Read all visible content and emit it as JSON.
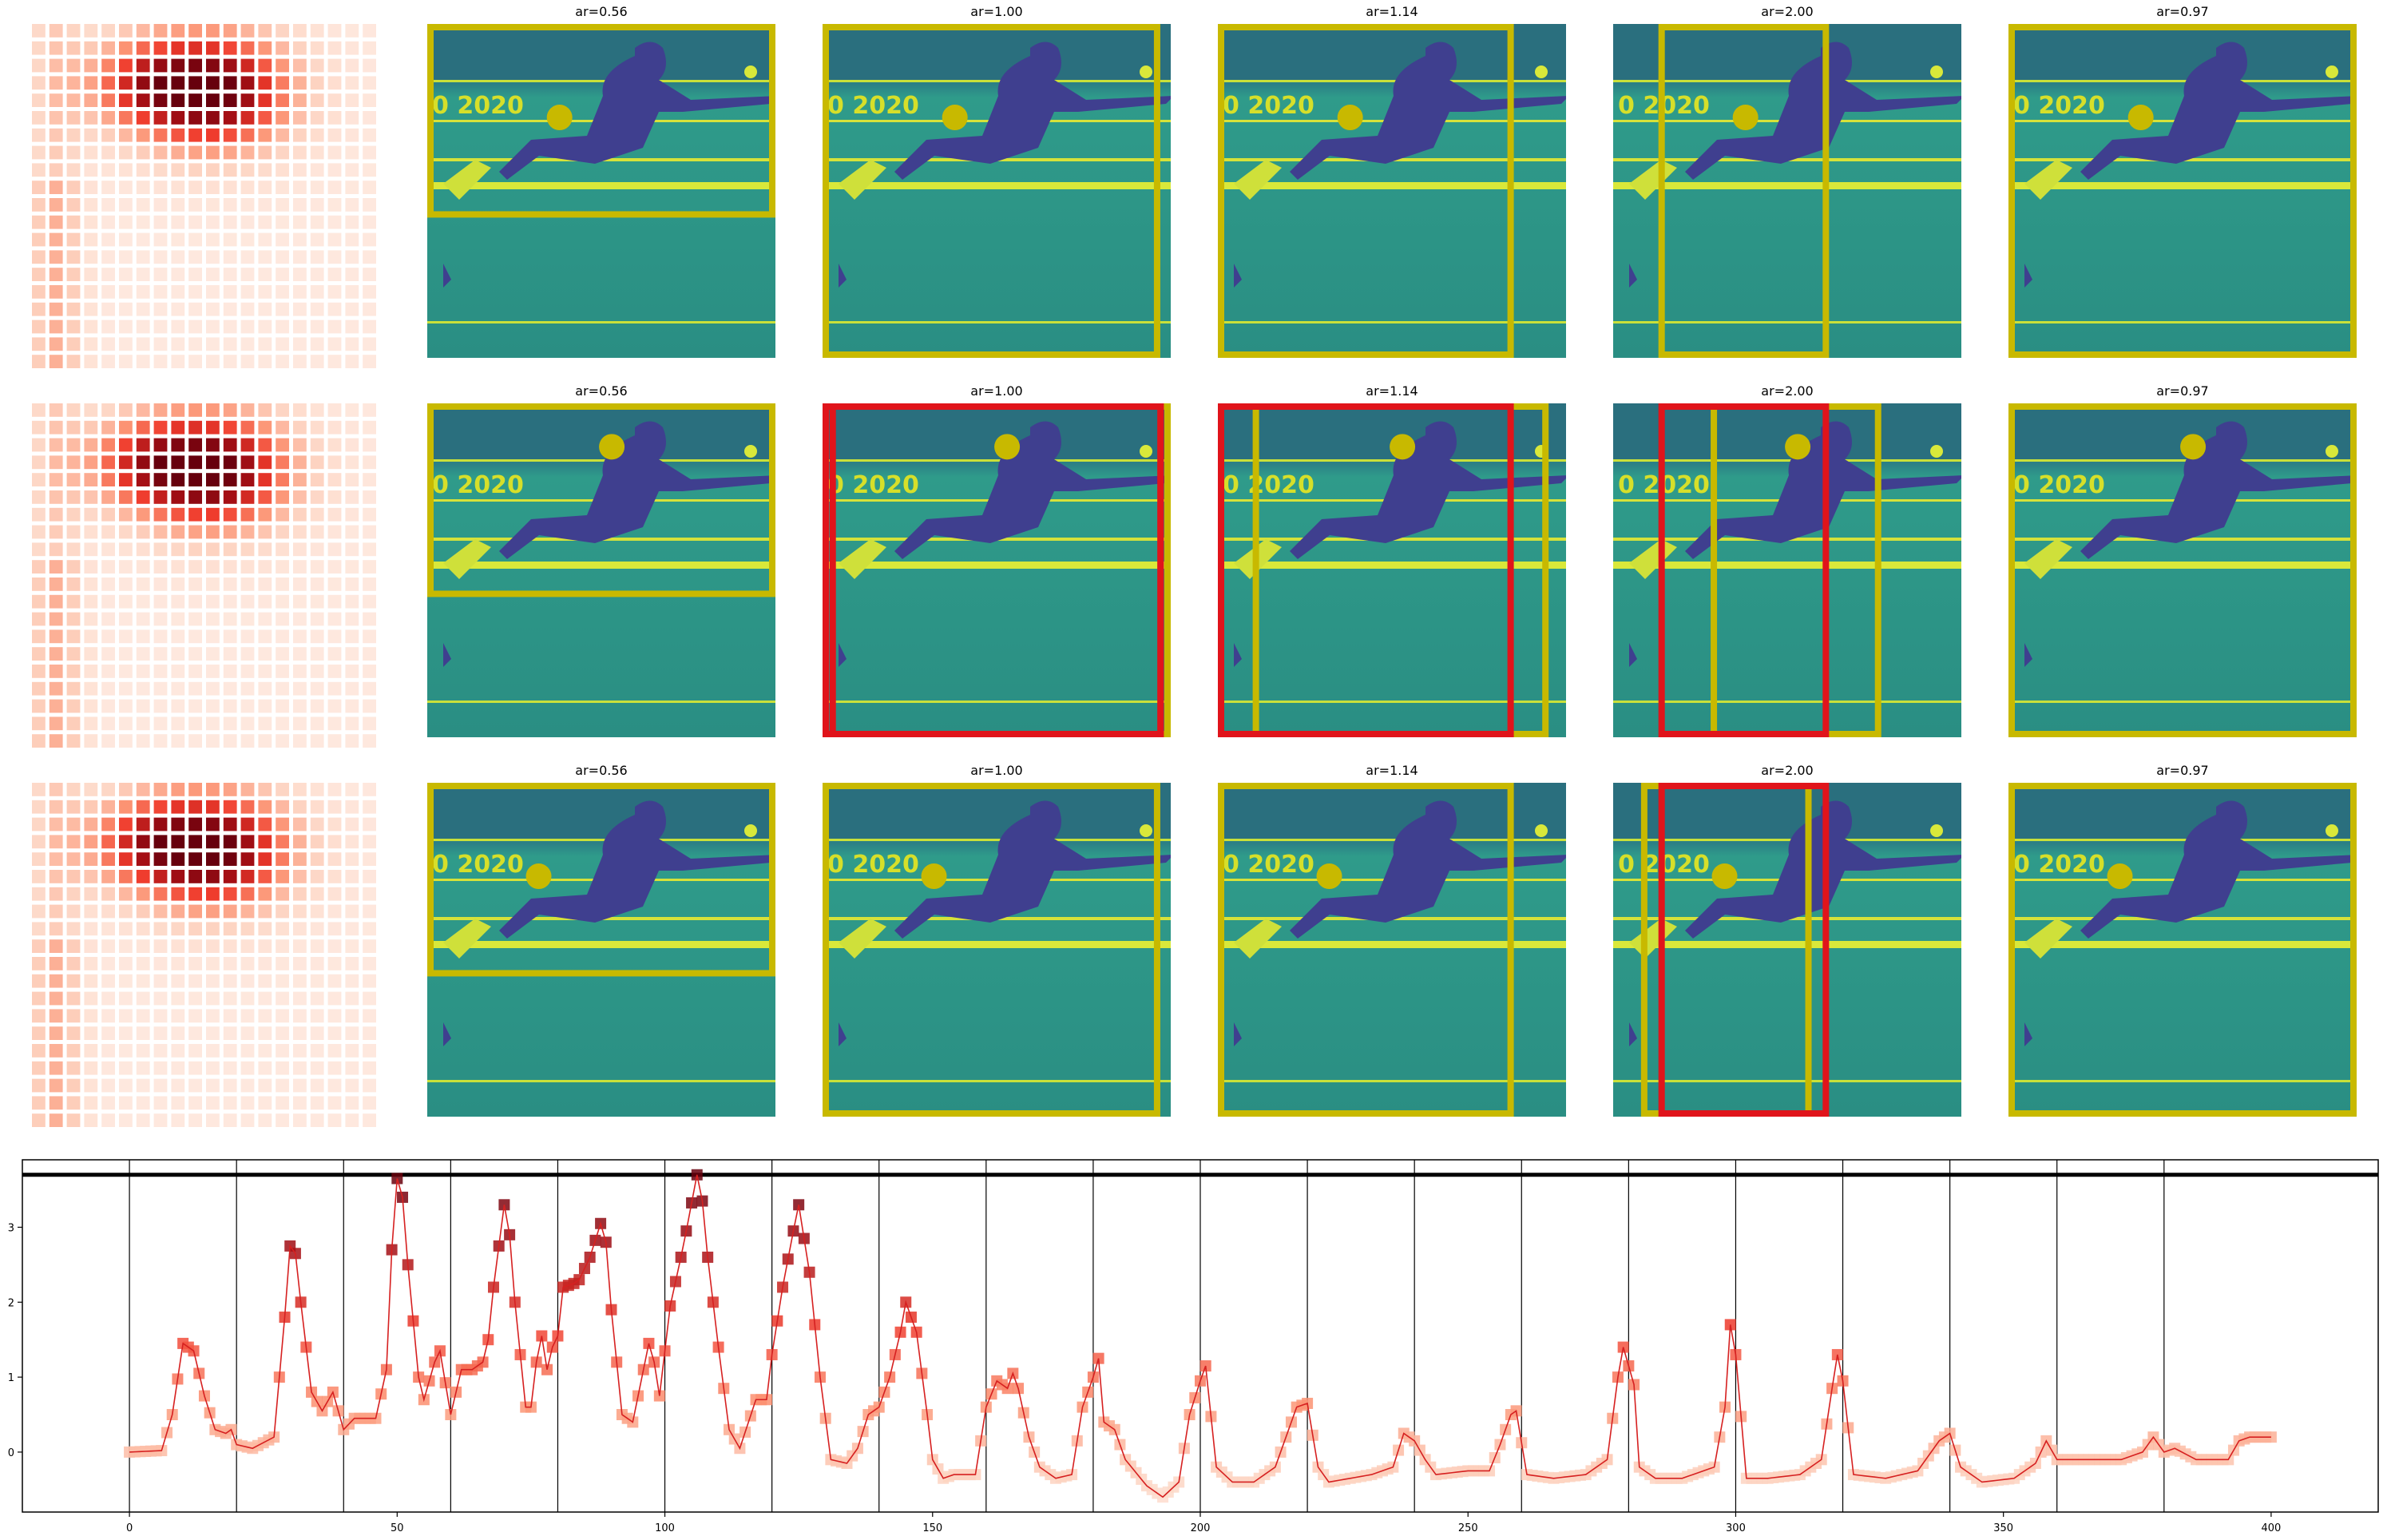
{
  "panel_rows": [
    {
      "titles": [
        "ar=0.56",
        "ar=1.00",
        "ar=1.14",
        "ar=2.00",
        "ar=0.97"
      ]
    },
    {
      "titles": [
        "ar=0.56",
        "ar=1.00",
        "ar=1.14",
        "ar=2.00",
        "ar=0.97"
      ]
    },
    {
      "titles": [
        "ar=0.56",
        "ar=1.00",
        "ar=1.14",
        "ar=2.00",
        "ar=0.97"
      ]
    }
  ],
  "colors": {
    "heat_scale": [
      "#fff5f0",
      "#fdd4c2",
      "#fc9272",
      "#ef3b2c",
      "#a50f15",
      "#67000d"
    ],
    "box_yellow": "#c8b900",
    "box_red": "#e0141b",
    "photo_bg": "#2a8a87",
    "line": "#d62020"
  },
  "chart_data": {
    "type": "line",
    "title": "",
    "xlabel": "",
    "ylabel": "",
    "xlim": [
      -20,
      420
    ],
    "ylim": [
      -0.8,
      3.9
    ],
    "xticks": [
      0,
      50,
      100,
      150,
      200,
      250,
      300,
      350,
      400
    ],
    "yticks": [
      0,
      1,
      2,
      3
    ],
    "threshold": 3.7,
    "vlines": [
      0,
      20,
      40,
      60,
      80,
      100,
      120,
      140,
      160,
      180,
      200,
      220,
      240,
      260,
      280,
      300,
      320,
      340,
      360,
      380
    ],
    "keypoints": [
      [
        0,
        0.0
      ],
      [
        6,
        0.02
      ],
      [
        8,
        0.5
      ],
      [
        10,
        1.45
      ],
      [
        12,
        1.35
      ],
      [
        14,
        0.75
      ],
      [
        16,
        0.3
      ],
      [
        18,
        0.25
      ],
      [
        19,
        0.3
      ],
      [
        20,
        0.1
      ],
      [
        23,
        0.05
      ],
      [
        27,
        0.2
      ],
      [
        29,
        1.8
      ],
      [
        30,
        2.75
      ],
      [
        31,
        2.65
      ],
      [
        32,
        2.0
      ],
      [
        34,
        0.8
      ],
      [
        36,
        0.55
      ],
      [
        38,
        0.8
      ],
      [
        40,
        0.3
      ],
      [
        42,
        0.45
      ],
      [
        46,
        0.45
      ],
      [
        48,
        1.1
      ],
      [
        49,
        2.7
      ],
      [
        50,
        3.65
      ],
      [
        51,
        3.4
      ],
      [
        52,
        2.5
      ],
      [
        54,
        1.0
      ],
      [
        55,
        0.7
      ],
      [
        57,
        1.2
      ],
      [
        58,
        1.35
      ],
      [
        60,
        0.5
      ],
      [
        62,
        1.1
      ],
      [
        64,
        1.1
      ],
      [
        66,
        1.2
      ],
      [
        67,
        1.5
      ],
      [
        68,
        2.2
      ],
      [
        70,
        3.3
      ],
      [
        71,
        2.9
      ],
      [
        72,
        2.0
      ],
      [
        74,
        0.6
      ],
      [
        75,
        0.6
      ],
      [
        76,
        1.2
      ],
      [
        77,
        1.55
      ],
      [
        78,
        1.1
      ],
      [
        79,
        1.4
      ],
      [
        80,
        1.55
      ],
      [
        81,
        2.2
      ],
      [
        83,
        2.25
      ],
      [
        84,
        2.3
      ],
      [
        86,
        2.6
      ],
      [
        88,
        3.05
      ],
      [
        89,
        2.8
      ],
      [
        90,
        1.9
      ],
      [
        92,
        0.5
      ],
      [
        94,
        0.4
      ],
      [
        96,
        1.1
      ],
      [
        97,
        1.45
      ],
      [
        98,
        1.2
      ],
      [
        99,
        0.75
      ],
      [
        101,
        1.95
      ],
      [
        103,
        2.6
      ],
      [
        104,
        2.95
      ],
      [
        106,
        3.7
      ],
      [
        107,
        3.35
      ],
      [
        108,
        2.6
      ],
      [
        110,
        1.4
      ],
      [
        112,
        0.3
      ],
      [
        114,
        0.05
      ],
      [
        117,
        0.7
      ],
      [
        119,
        0.7
      ],
      [
        120,
        1.3
      ],
      [
        122,
        2.2
      ],
      [
        124,
        2.95
      ],
      [
        125,
        3.3
      ],
      [
        127,
        2.4
      ],
      [
        129,
        1.0
      ],
      [
        131,
        -0.1
      ],
      [
        134,
        -0.15
      ],
      [
        136,
        0.05
      ],
      [
        138,
        0.5
      ],
      [
        140,
        0.6
      ],
      [
        142,
        1.0
      ],
      [
        144,
        1.6
      ],
      [
        145,
        2.0
      ],
      [
        147,
        1.6
      ],
      [
        149,
        0.5
      ],
      [
        150,
        -0.1
      ],
      [
        152,
        -0.35
      ],
      [
        154,
        -0.3
      ],
      [
        158,
        -0.3
      ],
      [
        160,
        0.6
      ],
      [
        162,
        0.95
      ],
      [
        164,
        0.85
      ],
      [
        165,
        1.05
      ],
      [
        166,
        0.85
      ],
      [
        168,
        0.2
      ],
      [
        170,
        -0.2
      ],
      [
        173,
        -0.35
      ],
      [
        176,
        -0.3
      ],
      [
        178,
        0.6
      ],
      [
        180,
        1.0
      ],
      [
        181,
        1.25
      ],
      [
        182,
        0.4
      ],
      [
        184,
        0.3
      ],
      [
        186,
        -0.1
      ],
      [
        190,
        -0.45
      ],
      [
        193,
        -0.6
      ],
      [
        196,
        -0.4
      ],
      [
        198,
        0.5
      ],
      [
        200,
        0.95
      ],
      [
        201,
        1.15
      ],
      [
        203,
        -0.2
      ],
      [
        206,
        -0.4
      ],
      [
        210,
        -0.4
      ],
      [
        214,
        -0.2
      ],
      [
        216,
        0.2
      ],
      [
        218,
        0.6
      ],
      [
        220,
        0.65
      ],
      [
        222,
        -0.2
      ],
      [
        224,
        -0.4
      ],
      [
        228,
        -0.35
      ],
      [
        232,
        -0.3
      ],
      [
        236,
        -0.2
      ],
      [
        238,
        0.25
      ],
      [
        240,
        0.15
      ],
      [
        242,
        -0.1
      ],
      [
        244,
        -0.3
      ],
      [
        250,
        -0.25
      ],
      [
        254,
        -0.25
      ],
      [
        256,
        0.1
      ],
      [
        258,
        0.5
      ],
      [
        259,
        0.55
      ],
      [
        261,
        -0.3
      ],
      [
        266,
        -0.35
      ],
      [
        272,
        -0.3
      ],
      [
        276,
        -0.1
      ],
      [
        278,
        1.0
      ],
      [
        279,
        1.4
      ],
      [
        281,
        0.9
      ],
      [
        282,
        -0.2
      ],
      [
        285,
        -0.35
      ],
      [
        290,
        -0.35
      ],
      [
        296,
        -0.2
      ],
      [
        298,
        0.6
      ],
      [
        299,
        1.7
      ],
      [
        300,
        1.3
      ],
      [
        302,
        -0.35
      ],
      [
        306,
        -0.35
      ],
      [
        312,
        -0.3
      ],
      [
        316,
        -0.1
      ],
      [
        318,
        0.85
      ],
      [
        319,
        1.3
      ],
      [
        320,
        0.95
      ],
      [
        322,
        -0.3
      ],
      [
        328,
        -0.35
      ],
      [
        334,
        -0.25
      ],
      [
        338,
        0.15
      ],
      [
        340,
        0.25
      ],
      [
        342,
        -0.2
      ],
      [
        346,
        -0.4
      ],
      [
        352,
        -0.35
      ],
      [
        356,
        -0.15
      ],
      [
        358,
        0.15
      ],
      [
        360,
        -0.1
      ],
      [
        366,
        -0.1
      ],
      [
        372,
        -0.1
      ],
      [
        376,
        0.0
      ],
      [
        378,
        0.2
      ],
      [
        380,
        0.0
      ],
      [
        382,
        0.05
      ],
      [
        386,
        -0.1
      ],
      [
        392,
        -0.1
      ],
      [
        394,
        0.15
      ],
      [
        396,
        0.2
      ],
      [
        400,
        0.2
      ]
    ]
  }
}
